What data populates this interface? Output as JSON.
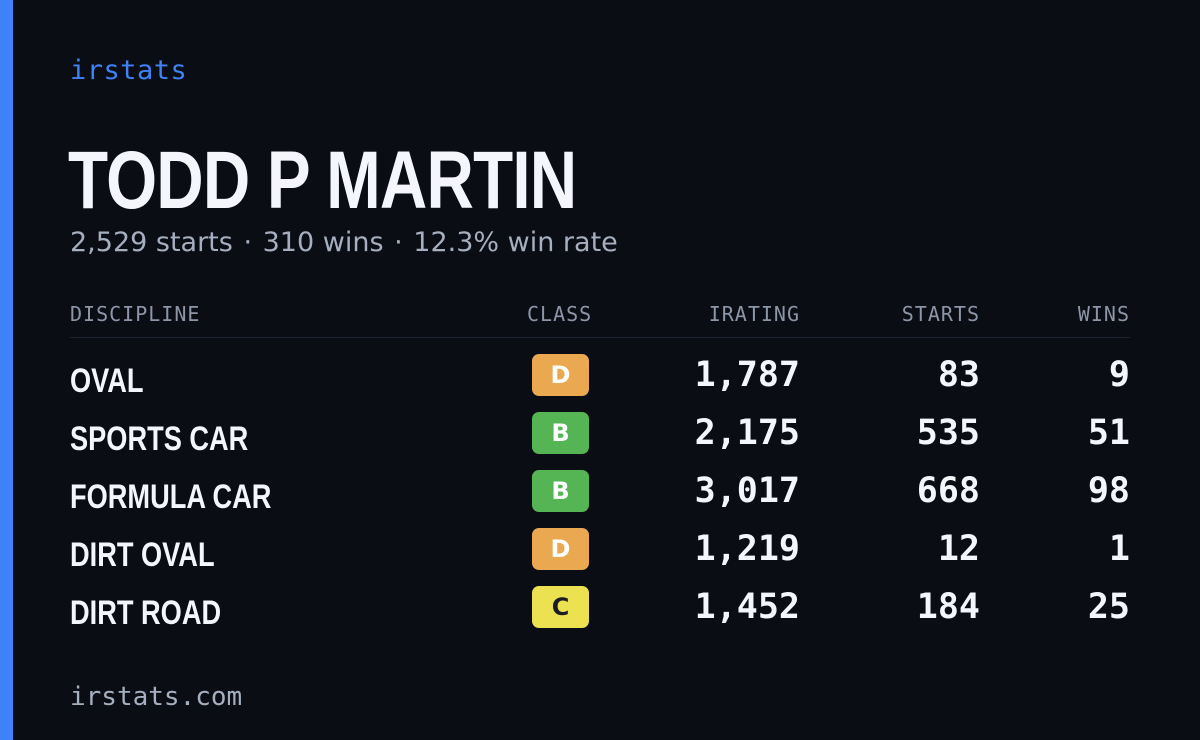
{
  "brand": "irstats",
  "driver": {
    "name": "TODD P MARTIN",
    "starts_text": "2,529 starts",
    "wins_text": "310 wins",
    "win_rate_text": "12.3% win rate",
    "separator": "·"
  },
  "table": {
    "headers": {
      "discipline": "DISCIPLINE",
      "class": "CLASS",
      "irating": "IRATING",
      "starts": "STARTS",
      "wins": "WINS"
    },
    "rows": [
      {
        "discipline": "OVAL",
        "class": "D",
        "class_color": "#eaa851",
        "irating": "1,787",
        "starts": "83",
        "wins": "9"
      },
      {
        "discipline": "SPORTS CAR",
        "class": "B",
        "class_color": "#55b453",
        "irating": "2,175",
        "starts": "535",
        "wins": "51"
      },
      {
        "discipline": "FORMULA CAR",
        "class": "B",
        "class_color": "#55b453",
        "irating": "3,017",
        "starts": "668",
        "wins": "98"
      },
      {
        "discipline": "DIRT OVAL",
        "class": "D",
        "class_color": "#eaa851",
        "irating": "1,219",
        "starts": "12",
        "wins": "1"
      },
      {
        "discipline": "DIRT ROAD",
        "class": "C",
        "class_color": "#ece150",
        "irating": "1,452",
        "starts": "184",
        "wins": "25"
      }
    ]
  },
  "footer": "irstats.com",
  "colors": {
    "accent": "#3d82f6",
    "background": "#0a0d14"
  }
}
